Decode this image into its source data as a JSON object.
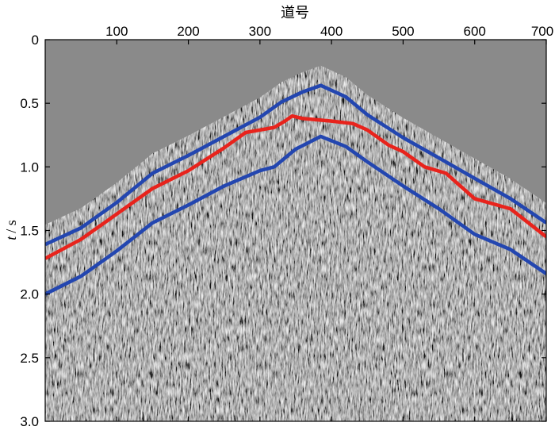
{
  "chart_data": {
    "type": "line",
    "xlabel": "道号",
    "ylabel": "t / s",
    "ylabel_var": "t",
    "ylabel_unit": "/ s",
    "xlim": [
      0,
      700
    ],
    "ylim": [
      0,
      3.0
    ],
    "x_axis_position": "top",
    "y_inverted": true,
    "grid": false,
    "legend": "none",
    "x_ticks": [
      100,
      200,
      300,
      400,
      500,
      600,
      700
    ],
    "y_ticks": [
      0,
      0.5,
      1.0,
      1.5,
      2.0,
      2.5,
      3.0
    ],
    "x_tick_labels": [
      "100",
      "200",
      "300",
      "400",
      "500",
      "600",
      "700"
    ],
    "y_tick_labels": [
      "0",
      "0.5",
      "1.0",
      "1.5",
      "2.0",
      "2.5",
      "3.0"
    ],
    "background": "seismic section (grayscale wiggle/variable density)",
    "series": [
      {
        "color": "#2346b0",
        "x": [
          0,
          50,
          100,
          150,
          200,
          250,
          300,
          330,
          360,
          385,
          420,
          450,
          500,
          550,
          600,
          650,
          700
        ],
        "y": [
          1.61,
          1.48,
          1.28,
          1.05,
          0.91,
          0.76,
          0.61,
          0.49,
          0.41,
          0.36,
          0.45,
          0.59,
          0.77,
          0.93,
          1.09,
          1.25,
          1.44
        ]
      },
      {
        "color": "#e8231c",
        "x": [
          0,
          50,
          100,
          150,
          200,
          250,
          280,
          300,
          320,
          335,
          345,
          360,
          380,
          400,
          430,
          450,
          480,
          500,
          530,
          560,
          600,
          650,
          700
        ],
        "y": [
          1.72,
          1.57,
          1.37,
          1.17,
          1.03,
          0.85,
          0.73,
          0.71,
          0.69,
          0.64,
          0.6,
          0.62,
          0.63,
          0.64,
          0.66,
          0.71,
          0.83,
          0.88,
          1.0,
          1.05,
          1.25,
          1.33,
          1.55
        ]
      },
      {
        "color": "#2346b0",
        "x": [
          0,
          50,
          100,
          150,
          200,
          250,
          300,
          320,
          350,
          385,
          420,
          450,
          500,
          550,
          600,
          650,
          700
        ],
        "y": [
          2.0,
          1.86,
          1.66,
          1.44,
          1.3,
          1.15,
          1.03,
          1.0,
          0.86,
          0.76,
          0.84,
          0.96,
          1.15,
          1.33,
          1.53,
          1.65,
          1.84
        ]
      }
    ]
  }
}
